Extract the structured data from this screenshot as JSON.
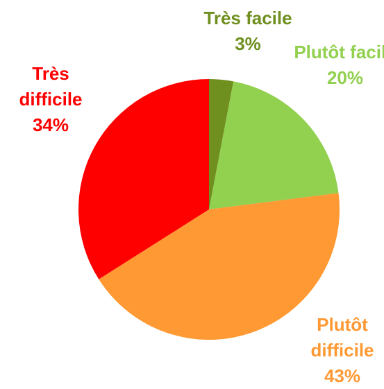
{
  "chart_data": {
    "type": "pie",
    "categories": [
      "Très facile",
      "Plutôt facile",
      "Plutôt difficile",
      "Très difficile"
    ],
    "values": [
      3,
      20,
      43,
      34
    ],
    "value_labels": [
      "3%",
      "20%",
      "43%",
      "34%"
    ],
    "colors": [
      "#6f8f1f",
      "#92d050",
      "#ff9933",
      "#ff0000"
    ]
  }
}
